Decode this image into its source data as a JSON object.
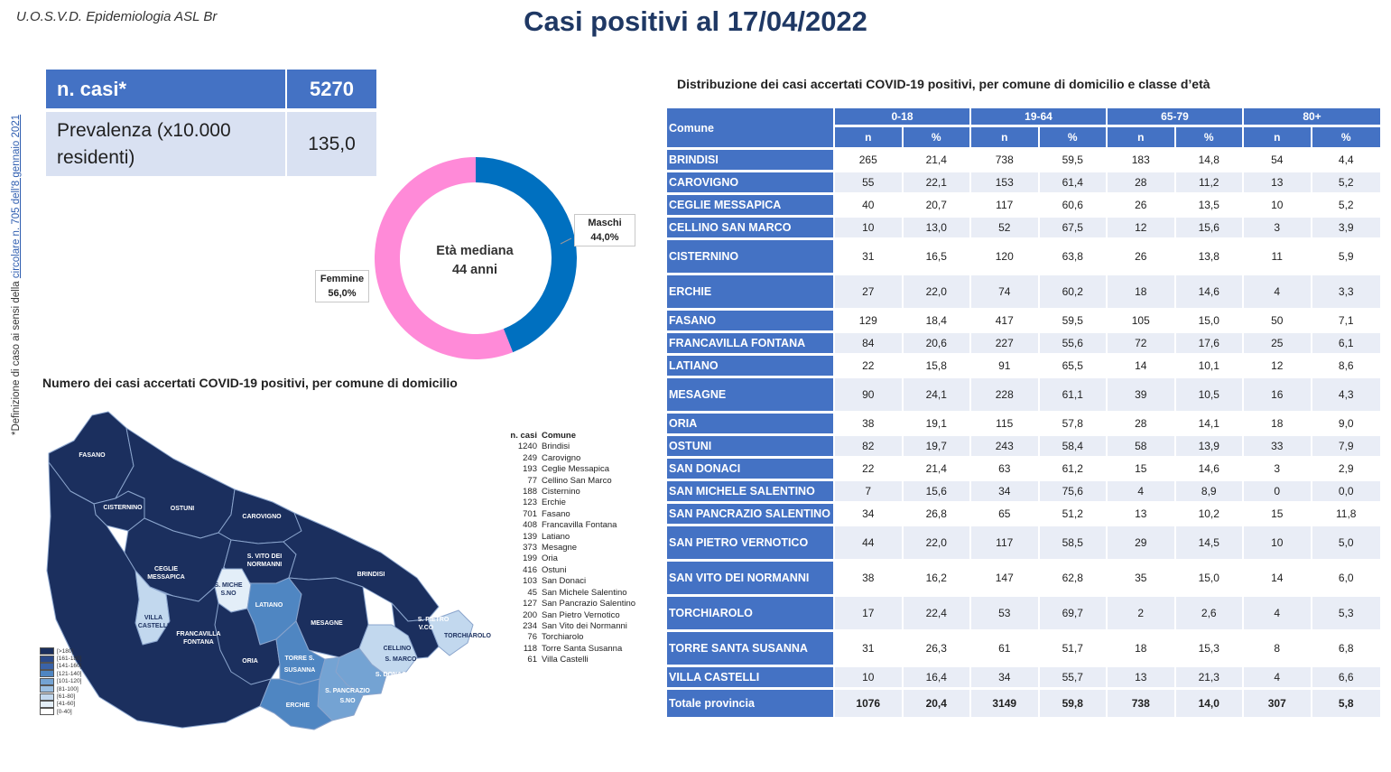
{
  "org": "U.O.S.V.D. Epidemiologia ASL Br",
  "title": "Casi positivi al 17/04/2022",
  "footnote": {
    "prefix": "*Definizione di caso ai sensi della ",
    "link": "circolare n. 705 dell'8 gennaio 2021"
  },
  "summary": {
    "cases_label": "n. casi*",
    "cases_value": "5270",
    "prev_label_line1": "Prevalenza (x10.000",
    "prev_label_line2": "residenti)",
    "prev_value": "135,0"
  },
  "donut": {
    "center_line1": "Età mediana",
    "center_line2": "44 anni",
    "male_label": "Maschi",
    "male_value": "44,0%",
    "female_label": "Femmine",
    "female_value": "56,0%",
    "male_fraction": 0.44,
    "male_color": "#0070c0",
    "female_color": "#ff8ad8"
  },
  "map": {
    "title": "Numero dei casi accertati COVID-19 positivi, per comune di domicilio",
    "labels": {
      "fasano": "FASANO",
      "cisternino": "CISTERNINO",
      "ostuni": "OSTUNI",
      "carovigno": "CAROVIGNO",
      "ceglie1": "CEGLIE",
      "ceglie2": "MESSAPICA",
      "svito1": "S. VITO DEI",
      "svito2": "NORMANNI",
      "brindisi": "BRINDISI",
      "smichele1": "S. MICHE",
      "smichele2": "S.NO",
      "latiano": "LATIANO",
      "mesagne": "MESAGNE",
      "spietro1": "S. PIETRO",
      "spietro2": "V.CO",
      "torchiarolo": "TORCHIAROLO",
      "villa1": "VILLA",
      "villa2": "CASTELLI",
      "francavilla1": "FRANCAVILLA",
      "francavilla2": "FONTANA",
      "oria": "ORIA",
      "torre1": "TORRE S.",
      "torre2": "SUSANNA",
      "cellino1": "CELLINO",
      "cellino2": "S. MARCO",
      "sdonaci": "S. DONACI",
      "spancrazio1": "S. PANCRAZIO",
      "spancrazio2": "S.NO",
      "erchie": "ERCHIE"
    },
    "legend": [
      {
        "label": "[>180]",
        "color": "#1b2f5e"
      },
      {
        "label": "[161-180]",
        "color": "#2b4a8a"
      },
      {
        "label": "[141-160]",
        "color": "#3a63a8"
      },
      {
        "label": "[121-140]",
        "color": "#4f86c2"
      },
      {
        "label": "[101-120]",
        "color": "#74a3d3"
      },
      {
        "label": "[81-100]",
        "color": "#9cc0e3"
      },
      {
        "label": "[61-80]",
        "color": "#c2d8ee"
      },
      {
        "label": "[41-60]",
        "color": "#e3eef8"
      },
      {
        "label": "[0-40]",
        "color": "#ffffff"
      }
    ],
    "list_header_n": "n. casi",
    "list_header_c": "Comune",
    "list": [
      {
        "n": "1240",
        "c": "Brindisi"
      },
      {
        "n": "249",
        "c": "Carovigno"
      },
      {
        "n": "193",
        "c": "Ceglie Messapica"
      },
      {
        "n": "77",
        "c": "Cellino San Marco"
      },
      {
        "n": "188",
        "c": "Cisternino"
      },
      {
        "n": "123",
        "c": "Erchie"
      },
      {
        "n": "701",
        "c": "Fasano"
      },
      {
        "n": "408",
        "c": "Francavilla Fontana"
      },
      {
        "n": "139",
        "c": "Latiano"
      },
      {
        "n": "373",
        "c": "Mesagne"
      },
      {
        "n": "199",
        "c": "Oria"
      },
      {
        "n": "416",
        "c": "Ostuni"
      },
      {
        "n": "103",
        "c": "San Donaci"
      },
      {
        "n": "45",
        "c": "San Michele Salentino"
      },
      {
        "n": "127",
        "c": "San Pancrazio Salentino"
      },
      {
        "n": "200",
        "c": "San Pietro Vernotico"
      },
      {
        "n": "234",
        "c": "San Vito dei Normanni"
      },
      {
        "n": "76",
        "c": "Torchiarolo"
      },
      {
        "n": "118",
        "c": "Torre Santa Susanna"
      },
      {
        "n": "61",
        "c": "Villa Castelli"
      }
    ]
  },
  "table": {
    "title": "Distribuzione dei casi accertati COVID-19 positivi, per comune di domicilio e classe d’età",
    "col_comune": "Comune",
    "groups": [
      "0-18",
      "19-64",
      "65-79",
      "80+"
    ],
    "sub_n": "n",
    "sub_pct": "%",
    "rows": [
      {
        "name": "BRINDISI",
        "v": [
          "265",
          "21,4",
          "738",
          "59,5",
          "183",
          "14,8",
          "54",
          "4,4"
        ]
      },
      {
        "name": "CAROVIGNO",
        "v": [
          "55",
          "22,1",
          "153",
          "61,4",
          "28",
          "11,2",
          "13",
          "5,2"
        ]
      },
      {
        "name": "CEGLIE MESSAPICA",
        "v": [
          "40",
          "20,7",
          "117",
          "60,6",
          "26",
          "13,5",
          "10",
          "5,2"
        ]
      },
      {
        "name": "CELLINO SAN MARCO",
        "v": [
          "10",
          "13,0",
          "52",
          "67,5",
          "12",
          "15,6",
          "3",
          "3,9"
        ]
      },
      {
        "name": "CISTERNINO",
        "v": [
          "31",
          "16,5",
          "120",
          "63,8",
          "26",
          "13,8",
          "11",
          "5,9"
        ]
      },
      {
        "name": "ERCHIE",
        "v": [
          "27",
          "22,0",
          "74",
          "60,2",
          "18",
          "14,6",
          "4",
          "3,3"
        ]
      },
      {
        "name": "FASANO",
        "v": [
          "129",
          "18,4",
          "417",
          "59,5",
          "105",
          "15,0",
          "50",
          "7,1"
        ]
      },
      {
        "name": "FRANCAVILLA FONTANA",
        "v": [
          "84",
          "20,6",
          "227",
          "55,6",
          "72",
          "17,6",
          "25",
          "6,1"
        ]
      },
      {
        "name": "LATIANO",
        "v": [
          "22",
          "15,8",
          "91",
          "65,5",
          "14",
          "10,1",
          "12",
          "8,6"
        ]
      },
      {
        "name": "MESAGNE",
        "v": [
          "90",
          "24,1",
          "228",
          "61,1",
          "39",
          "10,5",
          "16",
          "4,3"
        ]
      },
      {
        "name": "ORIA",
        "v": [
          "38",
          "19,1",
          "115",
          "57,8",
          "28",
          "14,1",
          "18",
          "9,0"
        ]
      },
      {
        "name": "OSTUNI",
        "v": [
          "82",
          "19,7",
          "243",
          "58,4",
          "58",
          "13,9",
          "33",
          "7,9"
        ]
      },
      {
        "name": "SAN DONACI",
        "v": [
          "22",
          "21,4",
          "63",
          "61,2",
          "15",
          "14,6",
          "3",
          "2,9"
        ]
      },
      {
        "name": "SAN MICHELE SALENTINO",
        "v": [
          "7",
          "15,6",
          "34",
          "75,6",
          "4",
          "8,9",
          "0",
          "0,0"
        ]
      },
      {
        "name": "SAN PANCRAZIO SALENTINO",
        "v": [
          "34",
          "26,8",
          "65",
          "51,2",
          "13",
          "10,2",
          "15",
          "11,8"
        ]
      },
      {
        "name": "SAN PIETRO VERNOTICO",
        "v": [
          "44",
          "22,0",
          "117",
          "58,5",
          "29",
          "14,5",
          "10",
          "5,0"
        ]
      },
      {
        "name": "SAN VITO DEI NORMANNI",
        "v": [
          "38",
          "16,2",
          "147",
          "62,8",
          "35",
          "15,0",
          "14",
          "6,0"
        ]
      },
      {
        "name": "TORCHIAROLO",
        "v": [
          "17",
          "22,4",
          "53",
          "69,7",
          "2",
          "2,6",
          "4",
          "5,3"
        ]
      },
      {
        "name": "TORRE SANTA SUSANNA",
        "v": [
          "31",
          "26,3",
          "61",
          "51,7",
          "18",
          "15,3",
          "8",
          "6,8"
        ]
      },
      {
        "name": "VILLA CASTELLI",
        "v": [
          "10",
          "16,4",
          "34",
          "55,7",
          "13",
          "21,3",
          "4",
          "6,6"
        ]
      }
    ],
    "total": {
      "name": "Totale provincia",
      "v": [
        "1076",
        "20,4",
        "3149",
        "59,8",
        "738",
        "14,0",
        "307",
        "5,8"
      ]
    }
  }
}
